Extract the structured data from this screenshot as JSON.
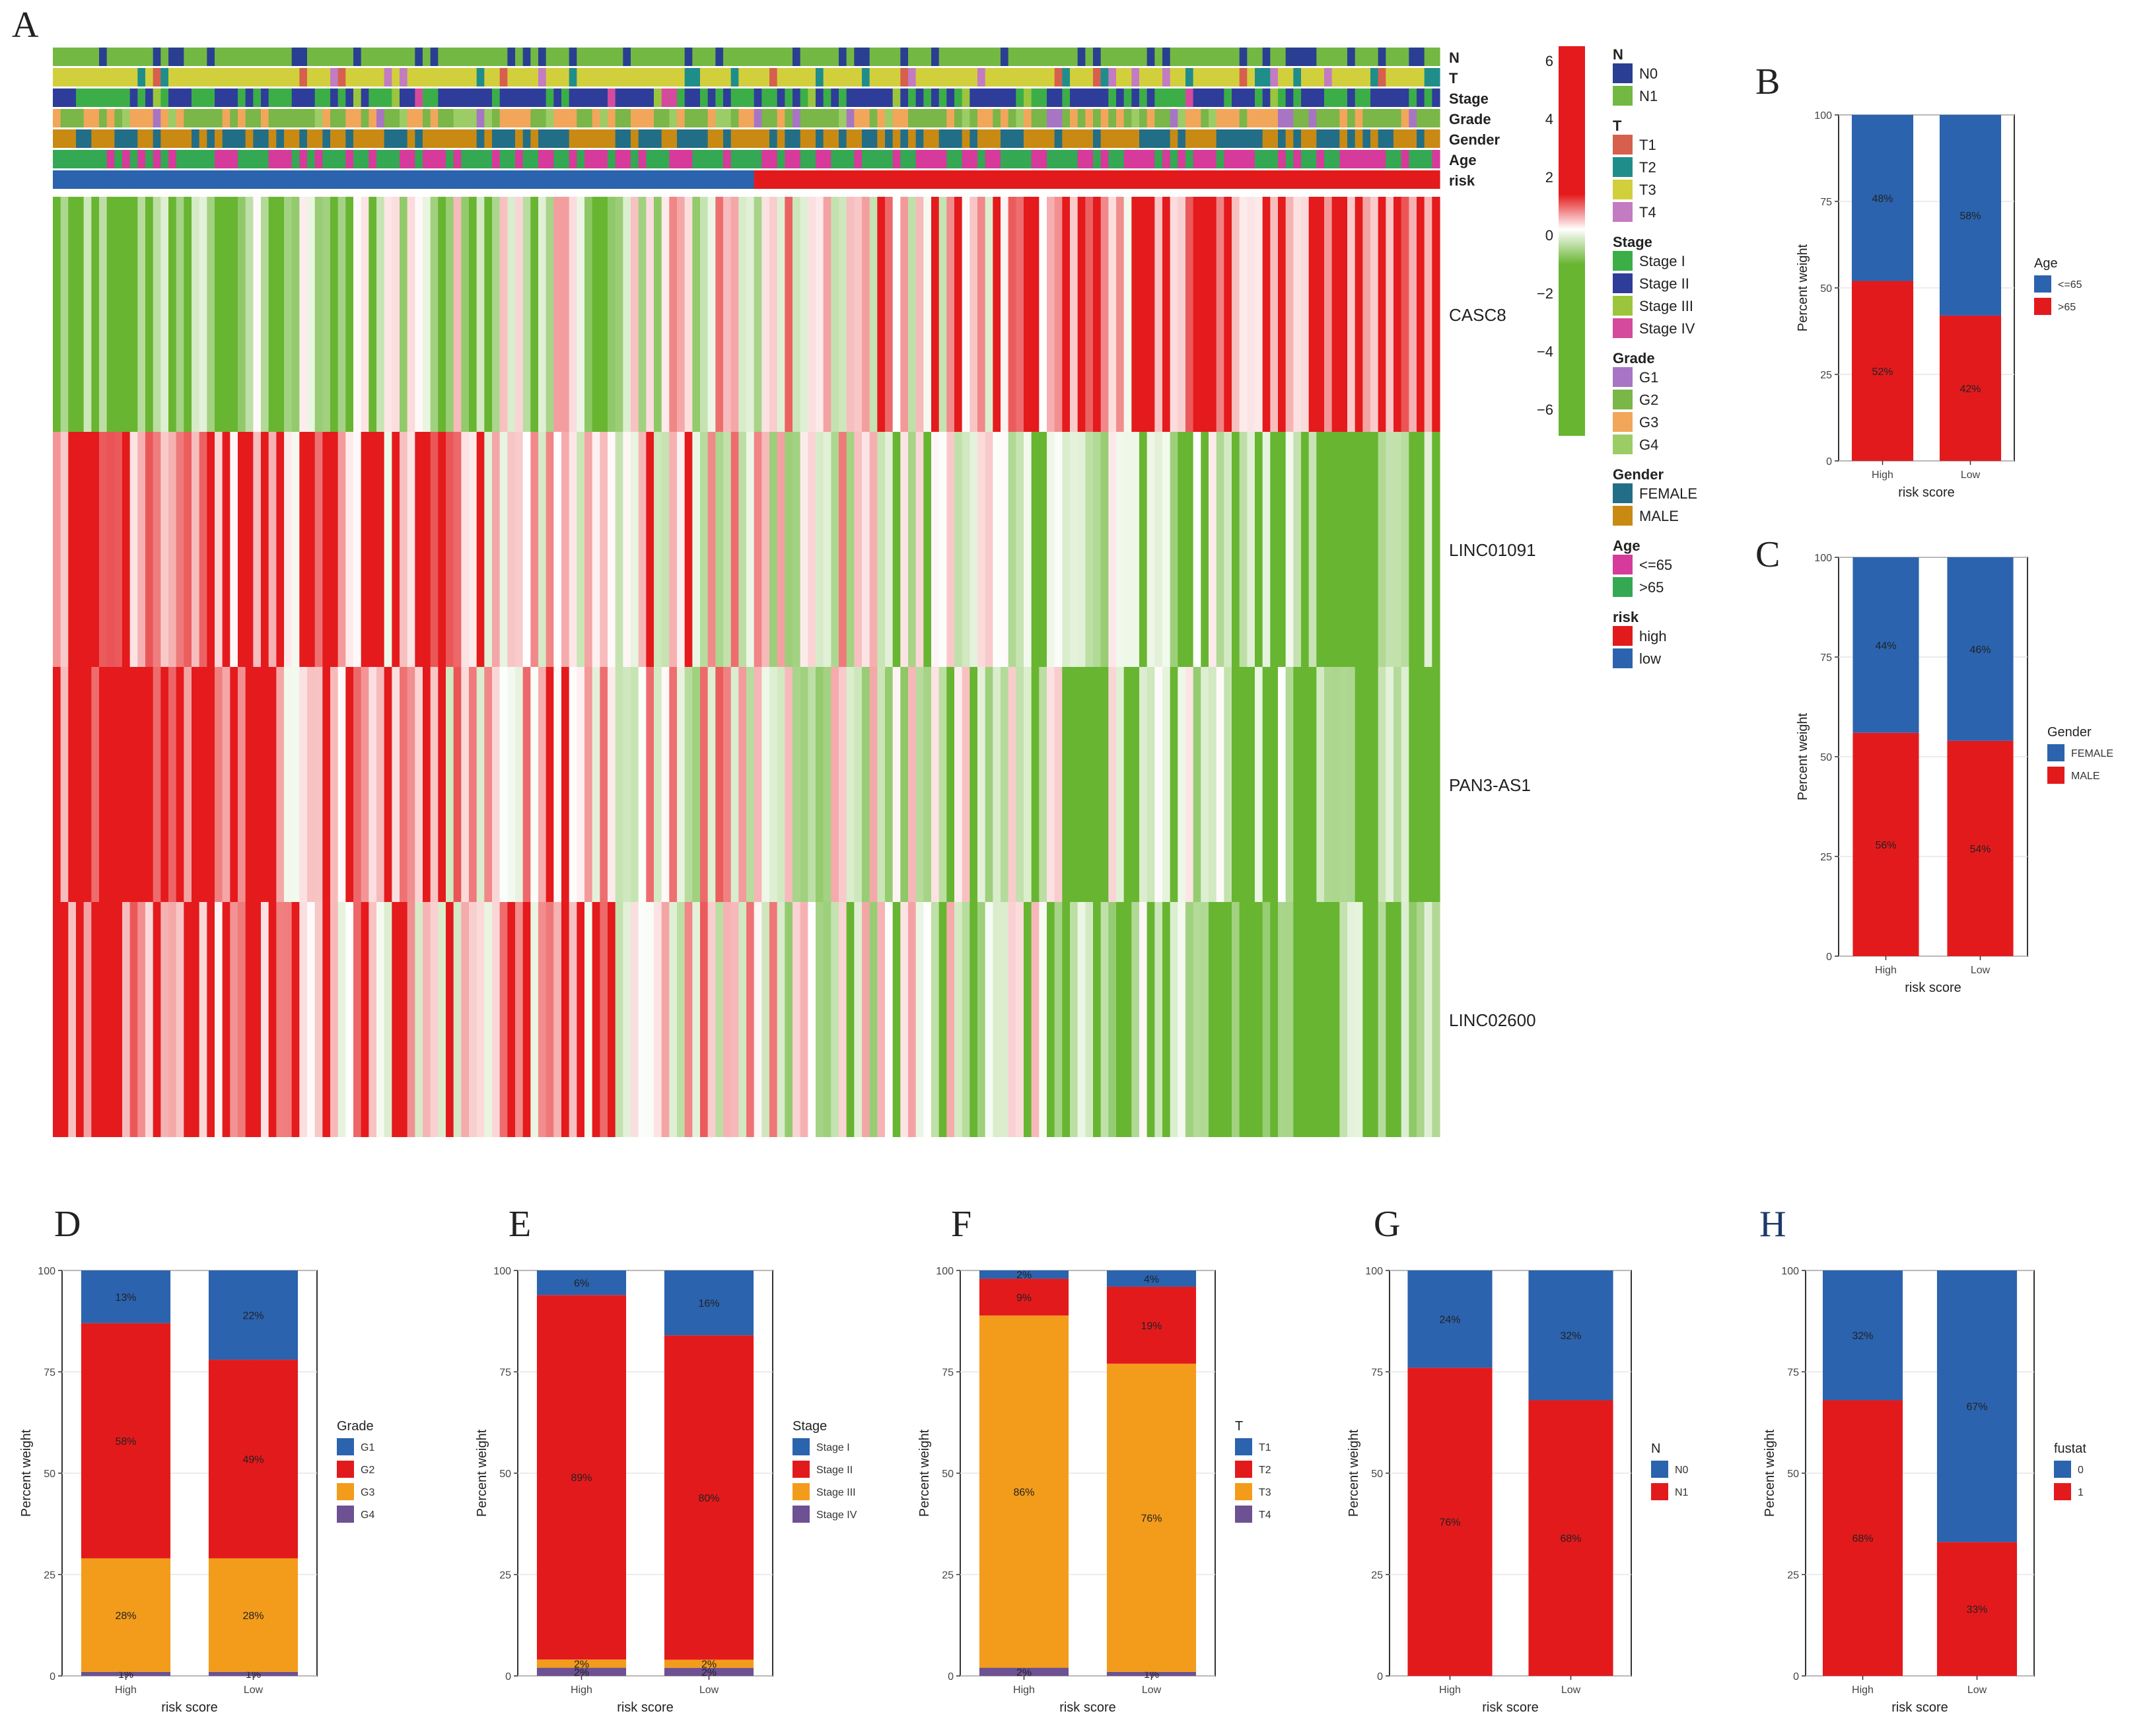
{
  "panel_labels": [
    "A",
    "B",
    "C",
    "D",
    "E",
    "F",
    "G",
    "H"
  ],
  "colors": {
    "heat_low": "#67b531",
    "heat_mid": "#ffffff",
    "heat_high": "#e41a1c",
    "blue": "#2b63ae",
    "red": "#e31a1c",
    "orange": "#f39c1b",
    "purple": "#6d5192"
  },
  "heatmap": {
    "annotation_tracks": [
      "N",
      "T",
      "Stage",
      "Grade",
      "Gender",
      "Age",
      "risk"
    ],
    "genes": [
      "CASC8",
      "LINC01091",
      "PAN3-AS1",
      "LINC02600"
    ],
    "colorbar_ticks": [
      "6",
      "4",
      "2",
      "0",
      "−2",
      "−4",
      "−6"
    ],
    "legend": [
      {
        "title": "N",
        "items": [
          {
            "label": "N0",
            "color": "#2a3f91"
          },
          {
            "label": "N1",
            "color": "#73b842"
          }
        ]
      },
      {
        "title": "T",
        "items": [
          {
            "label": "T1",
            "color": "#d6604d"
          },
          {
            "label": "T2",
            "color": "#1f8e8a"
          },
          {
            "label": "T3",
            "color": "#d2cf3c"
          },
          {
            "label": "T4",
            "color": "#c37bc2"
          }
        ]
      },
      {
        "title": "Stage",
        "items": [
          {
            "label": "Stage I",
            "color": "#3cae48"
          },
          {
            "label": "Stage II",
            "color": "#2e3d99"
          },
          {
            "label": "Stage III",
            "color": "#9bc53d"
          },
          {
            "label": "Stage IV",
            "color": "#d64a9d"
          }
        ]
      },
      {
        "title": "Grade",
        "items": [
          {
            "label": "G1",
            "color": "#a875c4"
          },
          {
            "label": "G2",
            "color": "#7ab648"
          },
          {
            "label": "G3",
            "color": "#f2a65a"
          },
          {
            "label": "G4",
            "color": "#9ccc65"
          }
        ]
      },
      {
        "title": "Gender",
        "items": [
          {
            "label": "FEMALE",
            "color": "#226e86"
          },
          {
            "label": "MALE",
            "color": "#c98a13"
          }
        ]
      },
      {
        "title": "Age",
        "items": [
          {
            "label": "<=65",
            "color": "#d63a9b"
          },
          {
            "label": ">65",
            "color": "#34a853"
          }
        ]
      },
      {
        "title": "risk",
        "items": [
          {
            "label": "high",
            "color": "#e31a1c"
          },
          {
            "label": "low",
            "color": "#2b63ae"
          }
        ]
      }
    ]
  },
  "chart_data": [
    {
      "panel": "B",
      "type": "bar",
      "stacked": true,
      "title": "",
      "xlabel": "risk score",
      "ylabel": "Percent weight",
      "categories": [
        "High",
        "Low"
      ],
      "ylim": [
        0,
        100
      ],
      "yticks": [
        "0",
        "25",
        "50",
        "75",
        "100"
      ],
      "legend_title": "Age",
      "series": [
        {
          "name": ">65",
          "color": "#e31a1c",
          "values": [
            52,
            42
          ],
          "labels": [
            "52%",
            "42%"
          ]
        },
        {
          "name": "<=65",
          "color": "#2b63ae",
          "values": [
            48,
            58
          ],
          "labels": [
            "48%",
            "58%"
          ]
        }
      ],
      "legend_order": [
        "<=65",
        ">65"
      ]
    },
    {
      "panel": "C",
      "type": "bar",
      "stacked": true,
      "title": "",
      "xlabel": "risk score",
      "ylabel": "Percent weight",
      "categories": [
        "High",
        "Low"
      ],
      "ylim": [
        0,
        100
      ],
      "yticks": [
        "0",
        "25",
        "50",
        "75",
        "100"
      ],
      "legend_title": "Gender",
      "series": [
        {
          "name": "MALE",
          "color": "#e31a1c",
          "values": [
            56,
            54
          ],
          "labels": [
            "56%",
            "54%"
          ]
        },
        {
          "name": "FEMALE",
          "color": "#2b63ae",
          "values": [
            44,
            46
          ],
          "labels": [
            "44%",
            "46%"
          ]
        }
      ],
      "legend_order": [
        "FEMALE",
        "MALE"
      ]
    },
    {
      "panel": "D",
      "type": "bar",
      "stacked": true,
      "title": "",
      "xlabel": "risk score",
      "ylabel": "Percent weight",
      "categories": [
        "High",
        "Low"
      ],
      "ylim": [
        0,
        100
      ],
      "yticks": [
        "0",
        "25",
        "50",
        "75",
        "100"
      ],
      "legend_title": "Grade",
      "series": [
        {
          "name": "G4",
          "color": "#6d5192",
          "values": [
            1,
            1
          ],
          "labels": [
            "1%",
            "1%"
          ]
        },
        {
          "name": "G3",
          "color": "#f39c1b",
          "values": [
            28,
            28
          ],
          "labels": [
            "28%",
            "28%"
          ]
        },
        {
          "name": "G2",
          "color": "#e31a1c",
          "values": [
            58,
            49
          ],
          "labels": [
            "58%",
            "49%"
          ]
        },
        {
          "name": "G1",
          "color": "#2b63ae",
          "values": [
            13,
            22
          ],
          "labels": [
            "13%",
            "22%"
          ]
        }
      ],
      "legend_order": [
        "G1",
        "G2",
        "G3",
        "G4"
      ]
    },
    {
      "panel": "E",
      "type": "bar",
      "stacked": true,
      "title": "",
      "xlabel": "risk score",
      "ylabel": "Percent weight",
      "categories": [
        "High",
        "Low"
      ],
      "ylim": [
        0,
        100
      ],
      "yticks": [
        "0",
        "25",
        "50",
        "75",
        "100"
      ],
      "legend_title": "Stage",
      "series": [
        {
          "name": "Stage IV",
          "color": "#6d5192",
          "values": [
            2,
            2
          ],
          "labels": [
            "2%",
            "2%"
          ]
        },
        {
          "name": "Stage III",
          "color": "#f39c1b",
          "values": [
            2,
            2
          ],
          "labels": [
            "2%",
            "2%"
          ]
        },
        {
          "name": "Stage II",
          "color": "#e31a1c",
          "values": [
            89,
            80
          ],
          "labels": [
            "89%",
            "80%"
          ]
        },
        {
          "name": "Stage I",
          "color": "#2b63ae",
          "values": [
            6,
            16
          ],
          "labels": [
            "6%",
            "16%"
          ]
        }
      ],
      "legend_order": [
        "Stage I",
        "Stage II",
        "Stage III",
        "Stage IV"
      ]
    },
    {
      "panel": "F",
      "type": "bar",
      "stacked": true,
      "title": "",
      "xlabel": "risk score",
      "ylabel": "Percent weight",
      "categories": [
        "High",
        "Low"
      ],
      "ylim": [
        0,
        100
      ],
      "yticks": [
        "0",
        "25",
        "50",
        "75",
        "100"
      ],
      "legend_title": "T",
      "series": [
        {
          "name": "T4",
          "color": "#6d5192",
          "values": [
            2,
            1
          ],
          "labels": [
            "2%",
            "1%"
          ]
        },
        {
          "name": "T3",
          "color": "#f39c1b",
          "values": [
            86,
            76
          ],
          "labels": [
            "86%",
            "76%"
          ]
        },
        {
          "name": "T2",
          "color": "#e31a1c",
          "values": [
            9,
            19
          ],
          "labels": [
            "9%",
            "19%"
          ]
        },
        {
          "name": "T1",
          "color": "#2b63ae",
          "values": [
            2,
            4
          ],
          "labels": [
            "2%",
            "4%"
          ]
        }
      ],
      "legend_order": [
        "T1",
        "T2",
        "T3",
        "T4"
      ]
    },
    {
      "panel": "G",
      "type": "bar",
      "stacked": true,
      "title": "",
      "xlabel": "risk score",
      "ylabel": "Percent weight",
      "categories": [
        "High",
        "Low"
      ],
      "ylim": [
        0,
        100
      ],
      "yticks": [
        "0",
        "25",
        "50",
        "75",
        "100"
      ],
      "legend_title": "N",
      "series": [
        {
          "name": "N1",
          "color": "#e31a1c",
          "values": [
            76,
            68
          ],
          "labels": [
            "76%",
            "68%"
          ]
        },
        {
          "name": "N0",
          "color": "#2b63ae",
          "values": [
            24,
            32
          ],
          "labels": [
            "24%",
            "32%"
          ]
        }
      ],
      "legend_order": [
        "N0",
        "N1"
      ]
    },
    {
      "panel": "H",
      "type": "bar",
      "stacked": true,
      "title": "",
      "xlabel": "risk score",
      "ylabel": "Percent weight",
      "categories": [
        "High",
        "Low"
      ],
      "ylim": [
        0,
        100
      ],
      "yticks": [
        "0",
        "25",
        "50",
        "75",
        "100"
      ],
      "legend_title": "fustat",
      "series": [
        {
          "name": "1",
          "color": "#e31a1c",
          "values": [
            68,
            33
          ],
          "labels": [
            "68%",
            "33%"
          ]
        },
        {
          "name": "0",
          "color": "#2b63ae",
          "values": [
            32,
            67
          ],
          "labels": [
            "32%",
            "67%"
          ]
        }
      ],
      "legend_order": [
        "0",
        "1"
      ]
    }
  ]
}
